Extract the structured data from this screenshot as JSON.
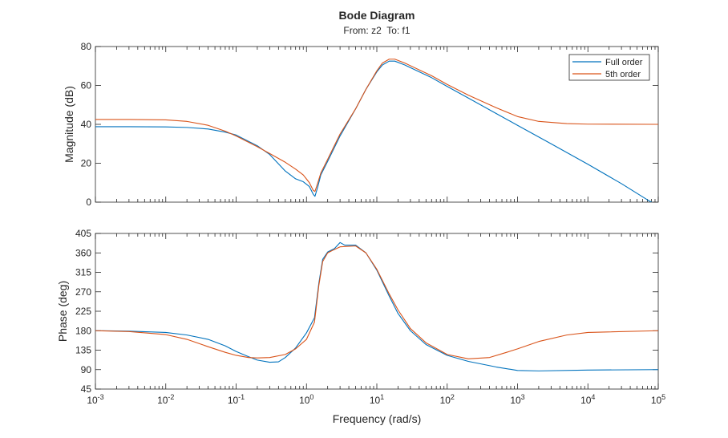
{
  "chart_data": {
    "type": "line",
    "title": "Bode Diagram",
    "subtitle": "From: z2  To: f1",
    "xlabel": "Frequency (rad/s)",
    "xscale": "log",
    "xlim": [
      0.001,
      100000
    ],
    "x_ticks": [
      {
        "base": "10",
        "exp": "-3"
      },
      {
        "base": "10",
        "exp": "-2"
      },
      {
        "base": "10",
        "exp": "-1"
      },
      {
        "base": "10",
        "exp": "0"
      },
      {
        "base": "10",
        "exp": "1"
      },
      {
        "base": "10",
        "exp": "2"
      },
      {
        "base": "10",
        "exp": "3"
      },
      {
        "base": "10",
        "exp": "4"
      },
      {
        "base": "10",
        "exp": "5"
      }
    ],
    "legend_position": "top-right",
    "colors": {
      "full": "#0072BD",
      "fifth": "#D95319",
      "axis": "#262626"
    },
    "panels": [
      {
        "ylabel": "Magnitude (dB)",
        "ylim": [
          0,
          80
        ],
        "yticks": [
          "0",
          "20",
          "40",
          "60",
          "80"
        ],
        "series": [
          {
            "name": "Full order",
            "color": "#0072BD",
            "points": [
              [
                0.001,
                38.8
              ],
              [
                0.003,
                38.8
              ],
              [
                0.01,
                38.7
              ],
              [
                0.02,
                38.4
              ],
              [
                0.04,
                37.6
              ],
              [
                0.07,
                36
              ],
              [
                0.1,
                34.5
              ],
              [
                0.2,
                29
              ],
              [
                0.3,
                24.5
              ],
              [
                0.5,
                16
              ],
              [
                0.7,
                12
              ],
              [
                0.9,
                10.5
              ],
              [
                1.1,
                8
              ],
              [
                1.25,
                4
              ],
              [
                1.32,
                3
              ],
              [
                1.45,
                8
              ],
              [
                1.6,
                14
              ],
              [
                2,
                21
              ],
              [
                3,
                34
              ],
              [
                5,
                48
              ],
              [
                7,
                58
              ],
              [
                10,
                67
              ],
              [
                12,
                70.5
              ],
              [
                15,
                72.5
              ],
              [
                18,
                72.5
              ],
              [
                25,
                70.5
              ],
              [
                40,
                67
              ],
              [
                60,
                64
              ],
              [
                100,
                59.5
              ],
              [
                200,
                53.5
              ],
              [
                500,
                45.5
              ],
              [
                1000,
                39.5
              ],
              [
                3000,
                30
              ],
              [
                10000,
                19.5
              ],
              [
                30000,
                9.5
              ],
              [
                70000,
                1.2
              ],
              [
                100000,
                -2
              ]
            ]
          },
          {
            "name": "5th order",
            "color": "#D95319",
            "points": [
              [
                0.001,
                42.5
              ],
              [
                0.003,
                42.5
              ],
              [
                0.01,
                42.3
              ],
              [
                0.02,
                41.5
              ],
              [
                0.04,
                39.5
              ],
              [
                0.07,
                36.5
              ],
              [
                0.1,
                34
              ],
              [
                0.2,
                28.5
              ],
              [
                0.3,
                25
              ],
              [
                0.5,
                20.5
              ],
              [
                0.7,
                17
              ],
              [
                0.9,
                14
              ],
              [
                1.1,
                10
              ],
              [
                1.25,
                6
              ],
              [
                1.32,
                5.5
              ],
              [
                1.45,
                10
              ],
              [
                1.6,
                15
              ],
              [
                2,
                22
              ],
              [
                3,
                35
              ],
              [
                5,
                48
              ],
              [
                7,
                58
              ],
              [
                10,
                67.5
              ],
              [
                12,
                71.5
              ],
              [
                15,
                73.5
              ],
              [
                18,
                73.5
              ],
              [
                25,
                71.5
              ],
              [
                40,
                68
              ],
              [
                60,
                65
              ],
              [
                100,
                60.5
              ],
              [
                200,
                55
              ],
              [
                500,
                48.5
              ],
              [
                1000,
                44
              ],
              [
                2000,
                41.5
              ],
              [
                5000,
                40.4
              ],
              [
                10000,
                40.1
              ],
              [
                100000,
                40
              ]
            ]
          }
        ]
      },
      {
        "ylabel": "Phase (deg)",
        "ylim": [
          45,
          405
        ],
        "yticks": [
          "45",
          "90",
          "135",
          "180",
          "225",
          "270",
          "315",
          "360",
          "405"
        ],
        "series": [
          {
            "name": "Full order",
            "color": "#0072BD",
            "points": [
              [
                0.001,
                180
              ],
              [
                0.003,
                179
              ],
              [
                0.01,
                176
              ],
              [
                0.02,
                170
              ],
              [
                0.04,
                160
              ],
              [
                0.07,
                145
              ],
              [
                0.1,
                132
              ],
              [
                0.15,
                120
              ],
              [
                0.2,
                112
              ],
              [
                0.3,
                107
              ],
              [
                0.4,
                108
              ],
              [
                0.5,
                118
              ],
              [
                0.7,
                140
              ],
              [
                1,
                175
              ],
              [
                1.3,
                210
              ],
              [
                1.5,
                290
              ],
              [
                1.7,
                345
              ],
              [
                2,
                362
              ],
              [
                2.5,
                370
              ],
              [
                3,
                384
              ],
              [
                3.5,
                378
              ],
              [
                5,
                378
              ],
              [
                7,
                360
              ],
              [
                10,
                320
              ],
              [
                15,
                260
              ],
              [
                20,
                220
              ],
              [
                30,
                180
              ],
              [
                50,
                148
              ],
              [
                100,
                123
              ],
              [
                200,
                109
              ],
              [
                500,
                96
              ],
              [
                1000,
                88
              ],
              [
                2000,
                87
              ],
              [
                10000,
                89
              ],
              [
                100000,
                90
              ]
            ]
          },
          {
            "name": "5th order",
            "color": "#D95319",
            "points": [
              [
                0.001,
                180
              ],
              [
                0.003,
                178
              ],
              [
                0.01,
                171
              ],
              [
                0.02,
                160
              ],
              [
                0.04,
                143
              ],
              [
                0.07,
                130
              ],
              [
                0.1,
                123
              ],
              [
                0.15,
                118
              ],
              [
                0.2,
                117
              ],
              [
                0.3,
                118
              ],
              [
                0.5,
                125
              ],
              [
                0.7,
                138
              ],
              [
                1,
                160
              ],
              [
                1.3,
                200
              ],
              [
                1.5,
                285
              ],
              [
                1.7,
                340
              ],
              [
                2,
                360
              ],
              [
                2.5,
                368
              ],
              [
                3,
                374
              ],
              [
                5,
                376
              ],
              [
                7,
                360
              ],
              [
                10,
                322
              ],
              [
                15,
                265
              ],
              [
                20,
                228
              ],
              [
                30,
                185
              ],
              [
                50,
                152
              ],
              [
                100,
                125
              ],
              [
                200,
                115
              ],
              [
                400,
                118
              ],
              [
                700,
                130
              ],
              [
                1000,
                138
              ],
              [
                2000,
                155
              ],
              [
                5000,
                170
              ],
              [
                10000,
                176
              ],
              [
                100000,
                180
              ]
            ]
          }
        ]
      }
    ]
  }
}
